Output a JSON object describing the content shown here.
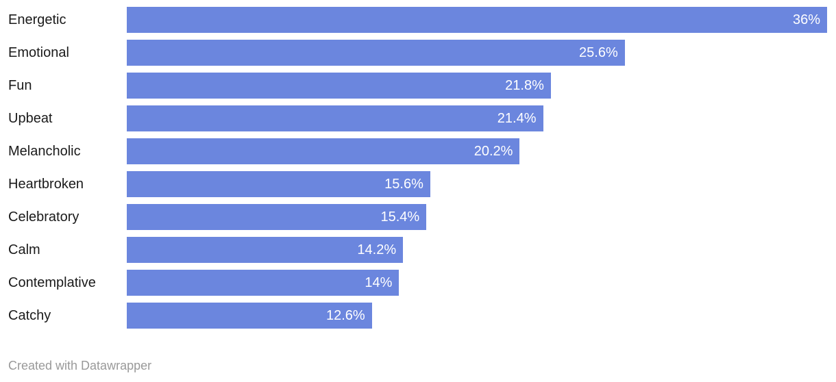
{
  "chart_data": {
    "type": "bar",
    "orientation": "horizontal",
    "title": "",
    "xlabel": "",
    "ylabel": "",
    "grid": false,
    "legend": false,
    "xmax": 36,
    "bar_color": "#6b86de",
    "value_label_color": "#ffffff",
    "category_label_color": "#1a1a1a",
    "categories": [
      "Energetic",
      "Emotional",
      "Fun",
      "Upbeat",
      "Melancholic",
      "Heartbroken",
      "Celebratory",
      "Calm",
      "Contemplative",
      "Catchy"
    ],
    "values": [
      36,
      25.6,
      21.8,
      21.4,
      20.2,
      15.6,
      15.4,
      14.2,
      14,
      12.6
    ],
    "value_labels": [
      "36%",
      "25.6%",
      "21.8%",
      "21.4%",
      "20.2%",
      "15.6%",
      "15.4%",
      "14.2%",
      "14%",
      "12.6%"
    ]
  },
  "footer": {
    "credit": "Created with Datawrapper"
  }
}
